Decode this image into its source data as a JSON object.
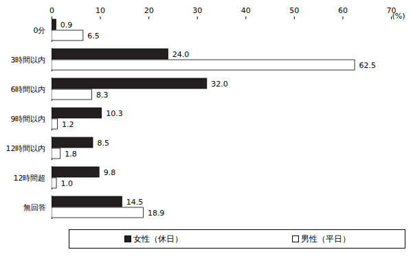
{
  "chart_data": {
    "type": "bar",
    "orientation": "horizontal",
    "categories": [
      "0分",
      "3時間以内",
      "6時間以内",
      "9時間以内",
      "12時間以内",
      "12時間超",
      "無回答"
    ],
    "series": [
      {
        "name": "女性（休日）",
        "color": "#231f20",
        "values": [
          0.9,
          24.0,
          32.0,
          10.3,
          8.5,
          9.8,
          14.5
        ],
        "value_labels": [
          "0.9",
          "24.0",
          "32.0",
          "10.3",
          "8.5",
          "9.8",
          "14.5"
        ]
      },
      {
        "name": "男性（平日）",
        "color": "#ffffff",
        "values": [
          6.5,
          62.5,
          8.3,
          1.2,
          1.8,
          1.0,
          18.9
        ],
        "value_labels": [
          "6.5",
          "62.5",
          "8.3",
          "1.2",
          "1.8",
          "1.0",
          "18.9"
        ]
      }
    ],
    "xlabel": "(%)",
    "xlim": [
      0,
      70
    ],
    "xticks": [
      0,
      10,
      20,
      30,
      40,
      50,
      60,
      70
    ],
    "grid": false,
    "data_labels": true,
    "legend": "bottom"
  }
}
